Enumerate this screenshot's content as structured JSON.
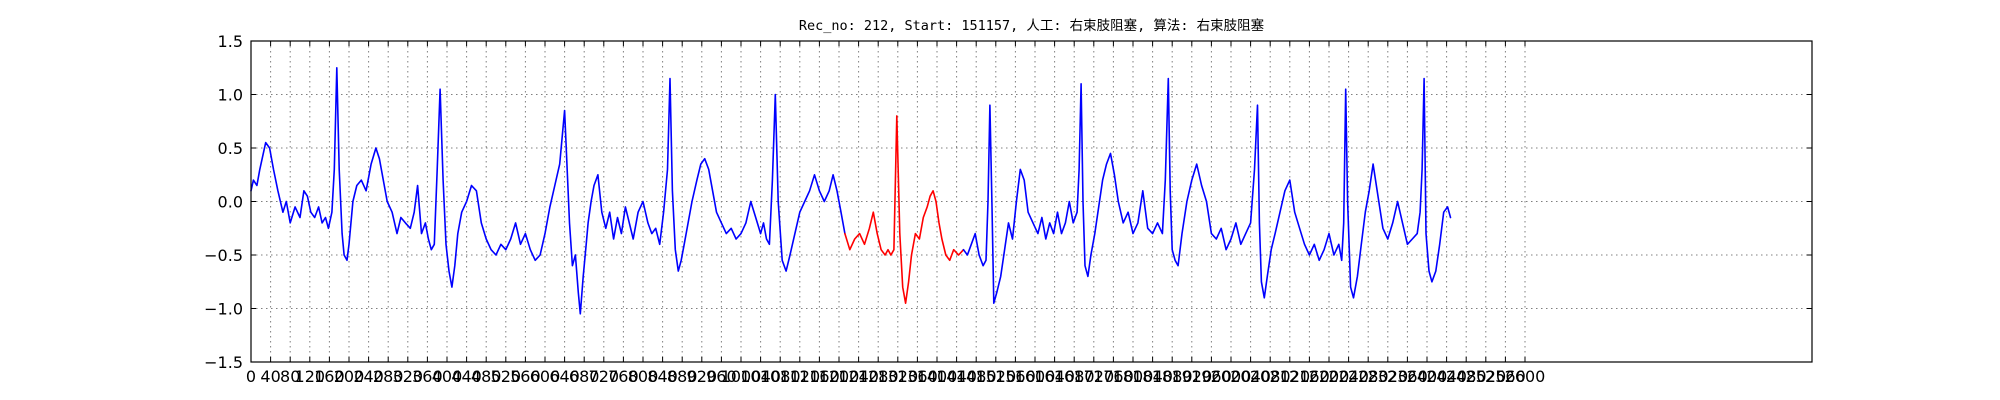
{
  "chart_data": {
    "type": "line",
    "title": "Rec_no: 212, Start: 151157, 人工: 右束肢阻塞, 算法: 右束肢阻塞",
    "xlabel": "",
    "ylabel": "",
    "xlim": [
      0,
      2800
    ],
    "ylim": [
      -1.5,
      1.5
    ],
    "grid": true,
    "x_ticks": [
      0,
      40,
      80,
      120,
      160,
      200,
      240,
      280,
      320,
      360,
      400,
      440,
      480,
      520,
      560,
      600,
      640,
      680,
      720,
      760,
      800,
      840,
      880,
      920,
      960,
      1000,
      1040,
      1080,
      1120,
      1160,
      1200,
      1240,
      1280,
      1320,
      1360,
      1400,
      1440,
      1480,
      1520,
      1560,
      1600,
      1640,
      1680,
      1720,
      1760,
      1800,
      1840,
      1880,
      1920,
      1960,
      2000,
      2040,
      2080,
      2120,
      2160,
      2200,
      2240,
      2280,
      2320,
      2360,
      2400,
      2440,
      2480,
      2520,
      2560,
      2600
    ],
    "y_ticks": [
      -1.5,
      -1.0,
      -0.5,
      0.0,
      0.5,
      1.0,
      1.5
    ],
    "y_tick_labels": [
      "−1.5",
      "−1.0",
      "−0.5",
      "0.0",
      "0.5",
      "1.0",
      "1.5"
    ],
    "series": [
      {
        "color": "#0000ff",
        "x": [
          0,
          5,
          12,
          18,
          25,
          30,
          38,
          46,
          55,
          65,
          72,
          80,
          90,
          100,
          108,
          115,
          122,
          130,
          138,
          145,
          152,
          158,
          165,
          170,
          175,
          180,
          186,
          190,
          196,
          200,
          208,
          216,
          225,
          235,
          245,
          255,
          262,
          270,
          278,
          288,
          298,
          306,
          315,
          325,
          333,
          340,
          348,
          356,
          362,
          368,
          374,
          380,
          386,
          392,
          398,
          404,
          410,
          416,
          422,
          430,
          440,
          450,
          460,
          470,
          480,
          490,
          500,
          510,
          520,
          530,
          540,
          550,
          560,
          570,
          580,
          590,
          600,
          610,
          620,
          630,
          640,
          650,
          656,
          662,
          668,
          672,
          678,
          684,
          688,
          694,
          700,
          708,
          716,
          724,
          732,
          740,
          748,
          756,
          764,
          772,
          780,
          790,
          800,
          810,
          818,
          826,
          834,
          842,
          850,
          855,
          860,
          866,
          872,
          878,
          884,
          892,
          900,
          910,
          918,
          926,
          934,
          942,
          950,
          960,
          970,
          980,
          990,
          1000,
          1010,
          1020,
          1030,
          1040,
          1046,
          1052,
          1058,
          1064,
          1070,
          1076,
          1084,
          1092,
          1100,
          1110,
          1120,
          1130,
          1140,
          1150,
          1160,
          1170,
          1180,
          1188,
          1196,
          1204,
          1212
        ],
        "y": [
          0.1,
          0.2,
          0.15,
          0.3,
          0.45,
          0.55,
          0.5,
          0.3,
          0.1,
          -0.1,
          0.0,
          -0.2,
          -0.05,
          -0.15,
          0.1,
          0.05,
          -0.1,
          -0.15,
          -0.05,
          -0.2,
          -0.15,
          -0.25,
          -0.1,
          0.3,
          1.25,
          0.3,
          -0.3,
          -0.5,
          -0.55,
          -0.4,
          0.0,
          0.15,
          0.2,
          0.1,
          0.35,
          0.5,
          0.4,
          0.2,
          0.0,
          -0.1,
          -0.3,
          -0.15,
          -0.2,
          -0.25,
          -0.1,
          0.15,
          -0.3,
          -0.2,
          -0.35,
          -0.45,
          -0.4,
          0.3,
          1.05,
          0.2,
          -0.4,
          -0.65,
          -0.8,
          -0.6,
          -0.3,
          -0.1,
          0.0,
          0.15,
          0.1,
          -0.2,
          -0.35,
          -0.45,
          -0.5,
          -0.4,
          -0.45,
          -0.35,
          -0.2,
          -0.4,
          -0.3,
          -0.45,
          -0.55,
          -0.5,
          -0.3,
          -0.05,
          0.15,
          0.35,
          0.85,
          -0.2,
          -0.6,
          -0.5,
          -0.85,
          -1.05,
          -0.7,
          -0.4,
          -0.2,
          0.0,
          0.15,
          0.25,
          -0.1,
          -0.25,
          -0.1,
          -0.35,
          -0.15,
          -0.3,
          -0.05,
          -0.2,
          -0.35,
          -0.1,
          0.0,
          -0.2,
          -0.3,
          -0.25,
          -0.4,
          -0.1,
          0.3,
          1.15,
          0.1,
          -0.45,
          -0.65,
          -0.55,
          -0.4,
          -0.2,
          0.0,
          0.2,
          0.35,
          0.4,
          0.3,
          0.1,
          -0.1,
          -0.2,
          -0.3,
          -0.25,
          -0.35,
          -0.3,
          -0.2,
          0.0,
          -0.15,
          -0.3,
          -0.2,
          -0.35,
          -0.4,
          0.2,
          1.0,
          0.0,
          -0.55,
          -0.65,
          -0.5,
          -0.3,
          -0.1,
          0.0,
          0.1,
          0.25,
          0.1,
          0.0,
          0.1,
          0.25,
          0.1,
          -0.1,
          -0.3
        ]
      },
      {
        "color": "#ff0000",
        "x": [
          1212,
          1222,
          1232,
          1242,
          1252,
          1262,
          1270,
          1278,
          1286,
          1294,
          1300,
          1306,
          1312,
          1318,
          1324,
          1330,
          1336,
          1342,
          1348,
          1356,
          1364,
          1372,
          1380,
          1386,
          1392,
          1398,
          1404,
          1410,
          1418,
          1426,
          1434,
          1444,
          1454
        ],
        "y": [
          -0.3,
          -0.45,
          -0.35,
          -0.3,
          -0.4,
          -0.25,
          -0.1,
          -0.3,
          -0.45,
          -0.5,
          -0.45,
          -0.5,
          -0.45,
          0.8,
          -0.3,
          -0.8,
          -0.95,
          -0.75,
          -0.5,
          -0.3,
          -0.35,
          -0.15,
          -0.05,
          0.05,
          0.1,
          0.0,
          -0.2,
          -0.35,
          -0.5,
          -0.55,
          -0.45,
          -0.5,
          -0.45
        ]
      },
      {
        "color": "#0000ff",
        "x": [
          1454,
          1462,
          1470,
          1478,
          1486,
          1494,
          1500,
          1504,
          1508,
          1512,
          1516,
          1522,
          1530,
          1538,
          1546,
          1554,
          1562,
          1570,
          1578,
          1586,
          1596,
          1606,
          1614,
          1622,
          1630,
          1638,
          1646,
          1654,
          1662,
          1670,
          1678,
          1686,
          1690,
          1694,
          1698,
          1702,
          1708,
          1714,
          1722,
          1730,
          1738,
          1746,
          1754,
          1762,
          1770,
          1780,
          1790,
          1800,
          1810,
          1820,
          1830,
          1840,
          1850,
          1860,
          1866,
          1872,
          1876,
          1880,
          1886,
          1892,
          1900,
          1910,
          1920,
          1930,
          1940,
          1950,
          1960,
          1970,
          1980,
          1990,
          2000,
          2010,
          2020,
          2030,
          2040,
          2048,
          2054,
          2058,
          2062,
          2068,
          2074,
          2082,
          2090,
          2100,
          2110,
          2120,
          2130,
          2140,
          2150,
          2160,
          2170,
          2180,
          2190,
          2200,
          2210,
          2220,
          2226,
          2230,
          2234,
          2238,
          2244,
          2250,
          2258,
          2266,
          2274,
          2282,
          2290,
          2300,
          2310,
          2320,
          2330,
          2340,
          2350,
          2360,
          2370,
          2380,
          2386,
          2390,
          2394,
          2398,
          2404,
          2410,
          2418,
          2426,
          2434,
          2442,
          2448
        ],
        "y": [
          -0.45,
          -0.5,
          -0.4,
          -0.3,
          -0.5,
          -0.6,
          -0.55,
          0.0,
          0.9,
          0.0,
          -0.95,
          -0.85,
          -0.7,
          -0.45,
          -0.2,
          -0.35,
          0.0,
          0.3,
          0.2,
          -0.1,
          -0.2,
          -0.3,
          -0.15,
          -0.35,
          -0.2,
          -0.3,
          -0.1,
          -0.3,
          -0.2,
          0.0,
          -0.2,
          -0.1,
          0.3,
          1.1,
          0.0,
          -0.6,
          -0.7,
          -0.5,
          -0.3,
          -0.05,
          0.2,
          0.35,
          0.45,
          0.25,
          0.0,
          -0.2,
          -0.1,
          -0.3,
          -0.2,
          0.1,
          -0.25,
          -0.3,
          -0.2,
          -0.3,
          0.2,
          1.15,
          0.1,
          -0.45,
          -0.55,
          -0.6,
          -0.3,
          0.0,
          0.2,
          0.35,
          0.15,
          0.0,
          -0.3,
          -0.35,
          -0.25,
          -0.45,
          -0.35,
          -0.2,
          -0.4,
          -0.3,
          -0.2,
          0.3,
          0.9,
          -0.2,
          -0.75,
          -0.9,
          -0.7,
          -0.45,
          -0.3,
          -0.1,
          0.1,
          0.2,
          -0.1,
          -0.25,
          -0.4,
          -0.5,
          -0.4,
          -0.55,
          -0.45,
          -0.3,
          -0.5,
          -0.4,
          -0.55,
          -0.2,
          1.05,
          0.0,
          -0.8,
          -0.9,
          -0.7,
          -0.4,
          -0.1,
          0.1,
          0.35,
          0.05,
          -0.25,
          -0.35,
          -0.2,
          0.0,
          -0.2,
          -0.4,
          -0.35,
          -0.3,
          -0.1,
          0.3,
          1.15,
          -0.3,
          -0.65,
          -0.75,
          -0.65,
          -0.4,
          -0.1,
          -0.05,
          -0.15
        ]
      }
    ]
  }
}
